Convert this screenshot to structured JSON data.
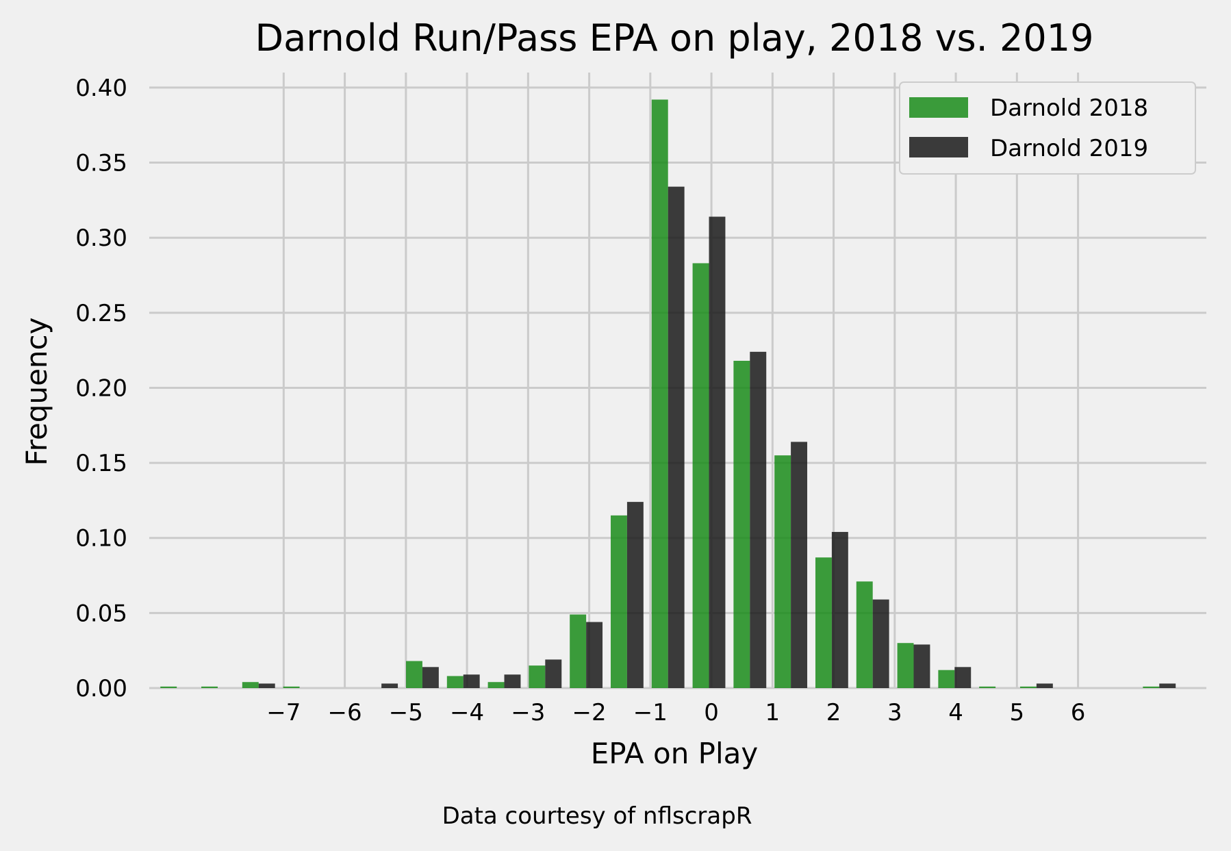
{
  "chart_data": {
    "type": "bar",
    "title": "Darnold Run/Pass EPA on play, 2018 vs. 2019",
    "xlabel": "EPA on Play",
    "ylabel": "Frequency",
    "caption": "Data courtesy of nflscrapR",
    "x_tick_labels": [
      "−7",
      "−6",
      "−5",
      "−4",
      "−3",
      "−2",
      "−1",
      "0",
      "1",
      "2",
      "3",
      "4",
      "5",
      "6"
    ],
    "x_ticks": [
      -7,
      -6,
      -5,
      -4,
      -3,
      -2,
      -1,
      0,
      1,
      2,
      3,
      4,
      5,
      6
    ],
    "y_tick_labels": [
      "0.00",
      "0.05",
      "0.10",
      "0.15",
      "0.20",
      "0.25",
      "0.30",
      "0.35",
      "0.40"
    ],
    "y_ticks": [
      0,
      0.05,
      0.1,
      0.15,
      0.2,
      0.25,
      0.3,
      0.35,
      0.4
    ],
    "xlim": [
      -9.2,
      8.1
    ],
    "ylim": [
      0,
      0.41
    ],
    "grid": true,
    "legend_position": "top-right",
    "bins": [
      -8.75,
      -8.08,
      -7.41,
      -6.74,
      -6.07,
      -5.4,
      -4.73,
      -4.06,
      -3.39,
      -2.72,
      -2.05,
      -1.38,
      -0.71,
      -0.04,
      0.63,
      1.3,
      1.97,
      2.64,
      3.31,
      3.98,
      4.65,
      5.32,
      5.99,
      6.66,
      7.33
    ],
    "series": [
      {
        "name": "Darnold 2018",
        "color": "#1a8c1a",
        "values": [
          0.001,
          0.001,
          0.004,
          0.001,
          0,
          0,
          0.018,
          0.008,
          0.004,
          0.015,
          0.049,
          0.115,
          0.392,
          0.283,
          0.218,
          0.155,
          0.087,
          0.071,
          0.03,
          0.012,
          0.001,
          0.001,
          0,
          0,
          0.001
        ]
      },
      {
        "name": "Darnold 2019",
        "color": "#1a1a1a",
        "values": [
          0,
          0,
          0.003,
          0,
          0,
          0.003,
          0.014,
          0.009,
          0.009,
          0.019,
          0.044,
          0.124,
          0.334,
          0.314,
          0.224,
          0.164,
          0.104,
          0.059,
          0.029,
          0.014,
          0,
          0.003,
          0,
          0,
          0.003
        ]
      }
    ]
  }
}
